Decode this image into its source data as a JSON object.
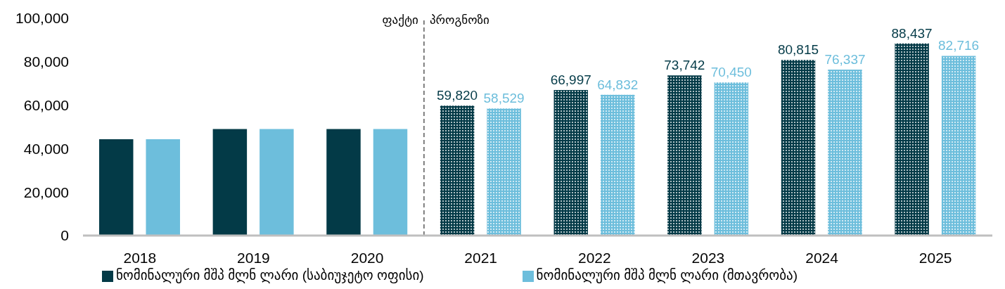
{
  "chart_data": {
    "type": "bar",
    "x": [
      2018,
      2019,
      2020,
      2021,
      2022,
      2023,
      2024,
      2025
    ],
    "xlim": [
      2017.5,
      2025.5
    ],
    "xticks": [
      2018,
      2019,
      2020,
      2021,
      2022,
      2023,
      2024,
      2025
    ],
    "ylim": [
      0,
      100000
    ],
    "yticks": [
      {
        "value": 0,
        "label": "0"
      },
      {
        "value": 20000,
        "label": "20,000"
      },
      {
        "value": 40000,
        "label": "40,000"
      },
      {
        "value": 60000,
        "label": "60,000"
      },
      {
        "value": 80000,
        "label": "80,000"
      },
      {
        "value": 100000,
        "label": "100,000"
      }
    ],
    "series": [
      {
        "name": "ნომინალური მშპ მლნ ლარი (საბიუჯეტო ოფისი)",
        "color": "#033a47",
        "values": [
          44300,
          49000,
          49000,
          59820,
          66997,
          73742,
          80815,
          88437
        ],
        "value_labels": [
          null,
          null,
          null,
          "59,820",
          "66,997",
          "73,742",
          "80,815",
          "88,437"
        ]
      },
      {
        "name": "ნომინალური მშპ მლნ ლარი (მთავრობა)",
        "color": "#6dbedc",
        "values": [
          44300,
          49000,
          49000,
          58529,
          64832,
          70450,
          76337,
          82716
        ],
        "value_labels": [
          null,
          null,
          null,
          "58,529",
          "64,832",
          "70,450",
          "76,337",
          "82,716"
        ]
      }
    ],
    "ref_lines": [
      {
        "axis": "x",
        "value": 2020.5,
        "color": "#595959",
        "line_style": "dashed"
      }
    ],
    "annotations": [
      "ფაქტი",
      "პროგნოზი"
    ],
    "legend": "bottom"
  }
}
